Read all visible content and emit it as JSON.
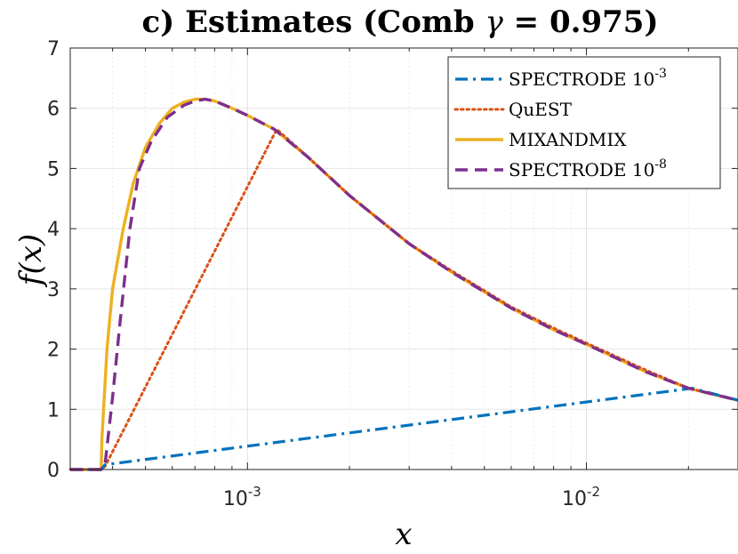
{
  "chart_data": {
    "type": "line",
    "title": "c) Estimates (Comb γ = 0.975)",
    "title_parts": {
      "prefix": "c) Estimates (Comb ",
      "symbol": "γ",
      "suffix": " = 0.975)"
    },
    "xlabel": "x",
    "ylabel": "f(x)",
    "x_scale": "log",
    "xlim": [
      0.0003,
      0.028
    ],
    "ylim": [
      0,
      7
    ],
    "grid": true,
    "legend_position": "top-right",
    "y_ticks": [
      "0",
      "1",
      "2",
      "3",
      "4",
      "5",
      "6",
      "7"
    ],
    "x_ticks": [
      {
        "value": 0.001,
        "base": "10",
        "exp": "-3"
      },
      {
        "value": 0.01,
        "base": "10",
        "exp": "-2"
      }
    ],
    "series": [
      {
        "name": "SPECTRODE 10",
        "name_exp": "-3",
        "color": "#0072BD",
        "style": "dashdot",
        "x": [
          0.0003,
          0.00037,
          0.00038,
          0.0205,
          0.028
        ],
        "y": [
          0,
          0,
          0.08,
          1.35,
          1.15
        ]
      },
      {
        "name": "QuEST",
        "name_exp": "",
        "color": "#D95319",
        "style": "dotted",
        "x": [
          0.0003,
          0.00037,
          0.00038,
          0.00122,
          0.0015,
          0.002,
          0.003,
          0.004,
          0.006,
          0.008,
          0.01,
          0.015,
          0.02,
          0.028
        ],
        "y": [
          0,
          0,
          0.05,
          5.65,
          5.2,
          4.55,
          3.75,
          3.3,
          2.7,
          2.35,
          2.1,
          1.65,
          1.35,
          1.15
        ]
      },
      {
        "name": "MIXANDMIX",
        "name_exp": "",
        "color": "#EDB120",
        "style": "solid",
        "x": [
          0.0003,
          0.00037,
          0.000372,
          0.000385,
          0.0004,
          0.00043,
          0.00046,
          0.0005,
          0.00055,
          0.0006,
          0.00065,
          0.0007,
          0.00075,
          0.0008,
          0.0009,
          0.001,
          0.0012,
          0.0015,
          0.002,
          0.003,
          0.004,
          0.006,
          0.008,
          0.01,
          0.015,
          0.02,
          0.028
        ],
        "y": [
          0,
          0,
          0.5,
          2.0,
          3.0,
          4.0,
          4.75,
          5.35,
          5.75,
          6.0,
          6.1,
          6.15,
          6.15,
          6.12,
          6.0,
          5.88,
          5.65,
          5.2,
          4.55,
          3.75,
          3.28,
          2.68,
          2.32,
          2.08,
          1.62,
          1.35,
          1.15
        ]
      },
      {
        "name": "SPECTRODE 10",
        "name_exp": "-8",
        "color": "#7E2F8E",
        "style": "dashed",
        "x": [
          0.0003,
          0.00037,
          0.00038,
          0.0004,
          0.00042,
          0.00045,
          0.00048,
          0.00052,
          0.00058,
          0.00065,
          0.0007,
          0.00075,
          0.0008,
          0.0009,
          0.001,
          0.0012,
          0.0015,
          0.002,
          0.003,
          0.004,
          0.006,
          0.008,
          0.01,
          0.015,
          0.02,
          0.028
        ],
        "y": [
          0,
          0,
          0.08,
          1.2,
          2.4,
          4.0,
          5.0,
          5.45,
          5.85,
          6.05,
          6.12,
          6.15,
          6.12,
          6.0,
          5.88,
          5.65,
          5.2,
          4.55,
          3.75,
          3.28,
          2.68,
          2.32,
          2.08,
          1.62,
          1.35,
          1.15
        ]
      }
    ]
  }
}
